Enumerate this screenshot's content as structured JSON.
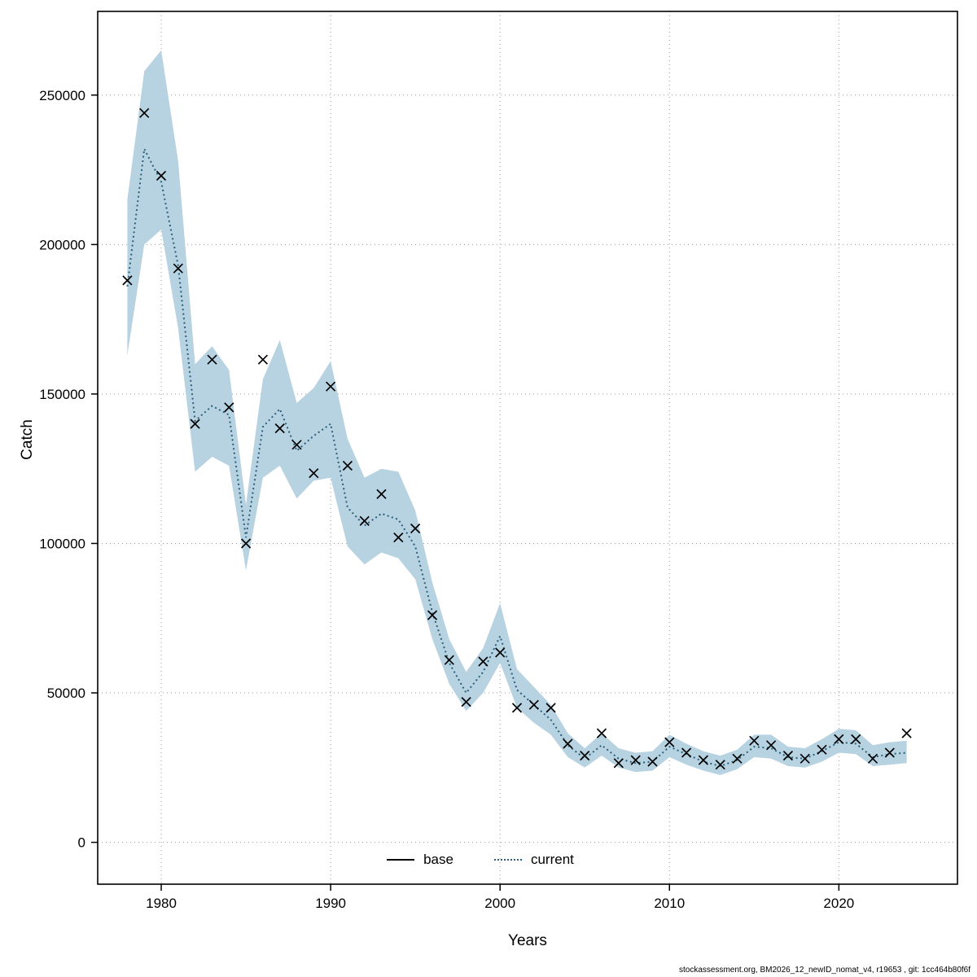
{
  "footer": {
    "text": "stockassessment.org, BM2026_12_newID_nomat_v4, r19653 , git: 1cc464b80f6f"
  },
  "chart_data": {
    "type": "line",
    "title": "",
    "xlabel": "Years",
    "ylabel": "Catch",
    "grid": true,
    "legend_position": "bottom-center",
    "xlim": [
      1976.25,
      2027.0
    ],
    "ylim": [
      -14000,
      278000
    ],
    "xticks": [
      1980,
      1990,
      2000,
      2010,
      2020
    ],
    "yticks": [
      0,
      50000,
      100000,
      150000,
      200000,
      250000
    ],
    "x": [
      1978,
      1979,
      1980,
      1981,
      1982,
      1983,
      1984,
      1985,
      1986,
      1987,
      1988,
      1989,
      1990,
      1991,
      1992,
      1993,
      1994,
      1995,
      1996,
      1997,
      1998,
      1999,
      2000,
      2001,
      2002,
      2003,
      2004,
      2005,
      2006,
      2007,
      2008,
      2009,
      2010,
      2011,
      2012,
      2013,
      2014,
      2015,
      2016,
      2017,
      2018,
      2019,
      2020,
      2021,
      2022,
      2023,
      2024
    ],
    "series": [
      {
        "name": "base",
        "style": "points",
        "marker": "x",
        "color": "#000000",
        "values": [
          188000,
          244000,
          223000,
          192000,
          140000,
          161500,
          145500,
          100000,
          161500,
          138500,
          133000,
          123500,
          152500,
          126000,
          107500,
          116500,
          102000,
          105000,
          76000,
          61000,
          47000,
          60500,
          63500,
          45000,
          46000,
          45000,
          33000,
          29000,
          36500,
          26500,
          27500,
          27000,
          33500,
          30000,
          27500,
          26000,
          28000,
          34000,
          32500,
          29000,
          28000,
          31000,
          34500,
          34500,
          28000,
          30000,
          36500
        ]
      },
      {
        "name": "current",
        "style": "dotted-line",
        "color": "#2a5f7a",
        "values": [
          186000,
          232000,
          221000,
          193000,
          141000,
          146000,
          143000,
          102000,
          139000,
          145000,
          131000,
          136000,
          140000,
          112000,
          106000,
          110000,
          108000,
          99000,
          77000,
          60000,
          50000,
          57000,
          69000,
          51000,
          46000,
          41000,
          32500,
          28000,
          32500,
          28000,
          26500,
          27000,
          32000,
          29500,
          27000,
          25500,
          27500,
          32000,
          31500,
          28500,
          28000,
          30500,
          33500,
          33000,
          28500,
          29500,
          30000
        ]
      }
    ],
    "band": {
      "name": "current-confidence-band",
      "fill": "#b7d3e2",
      "upper": [
        215000,
        258000,
        265000,
        228000,
        160000,
        166000,
        158000,
        113000,
        155000,
        168000,
        147000,
        152000,
        161000,
        135000,
        122000,
        125000,
        124000,
        111000,
        87000,
        68000,
        57000,
        65000,
        80000,
        58000,
        52000,
        46000,
        36500,
        31500,
        36500,
        31500,
        30000,
        30500,
        36000,
        33000,
        30500,
        29000,
        31000,
        36000,
        36000,
        32000,
        31500,
        34500,
        38000,
        37500,
        32500,
        33500,
        34000
      ],
      "lower": [
        163000,
        200000,
        205000,
        172000,
        124000,
        129000,
        126000,
        91000,
        122000,
        126000,
        115000,
        121000,
        122000,
        99000,
        93000,
        97000,
        95000,
        88000,
        68000,
        53000,
        44000,
        50000,
        60000,
        45000,
        40000,
        36000,
        28500,
        25000,
        29000,
        25000,
        23500,
        24000,
        28500,
        26000,
        24000,
        22500,
        24500,
        28500,
        28000,
        25500,
        25000,
        27000,
        30000,
        29500,
        25500,
        26000,
        26500
      ]
    }
  }
}
